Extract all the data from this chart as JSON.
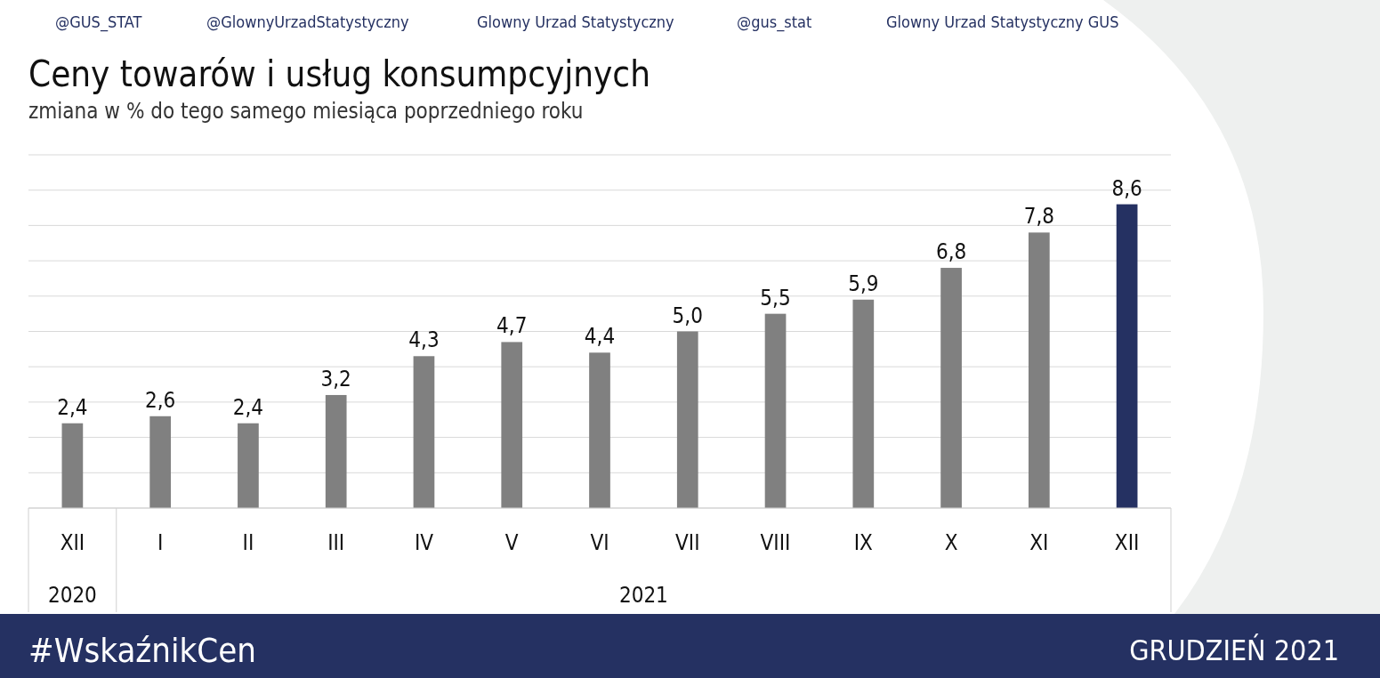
{
  "chart_data": {
    "type": "bar",
    "title": "Ceny towarów i usług konsumpcyjnych",
    "subtitle": "zmiana w % do tego samego miesiąca poprzedniego roku",
    "categories": [
      "XII",
      "I",
      "II",
      "III",
      "IV",
      "V",
      "VI",
      "VII",
      "VIII",
      "IX",
      "X",
      "XI",
      "XII"
    ],
    "values": [
      2.4,
      2.6,
      2.4,
      3.2,
      4.3,
      4.7,
      4.4,
      5.0,
      5.5,
      5.9,
      6.8,
      7.8,
      8.6
    ],
    "value_labels": [
      "2,4",
      "2,6",
      "2,4",
      "3,2",
      "4,3",
      "4,7",
      "4,4",
      "5,0",
      "5,5",
      "5,9",
      "6,8",
      "7,8",
      "8,6"
    ],
    "colors": [
      "#808080",
      "#808080",
      "#808080",
      "#808080",
      "#808080",
      "#808080",
      "#808080",
      "#808080",
      "#808080",
      "#808080",
      "#808080",
      "#808080",
      "#253162"
    ],
    "ylim": [
      0,
      10
    ],
    "yticks": [
      {
        "value": 0,
        "label": null
      },
      {
        "value": 1,
        "label": null
      },
      {
        "value": 2,
        "label": null
      },
      {
        "value": 3,
        "label": null
      },
      {
        "value": 4,
        "label": null
      },
      {
        "value": 5,
        "label": null
      },
      {
        "value": 6,
        "label": null
      },
      {
        "value": 7,
        "label": null
      },
      {
        "value": 8,
        "label": null
      },
      {
        "value": 9,
        "label": null
      },
      {
        "value": 10,
        "label": null
      }
    ],
    "grid": "y",
    "tick_labels": "x",
    "annotations": [
      "2020",
      "2021",
      "@GUS_STAT",
      "@GlownyUrzadStatystyczny",
      "Glowny Urzad Statystyczny",
      "@gus_stat",
      "Glowny Urzad Statystyczny GUS",
      "#WskaźnikCen",
      "GRUDZIEŃ 2021"
    ]
  }
}
